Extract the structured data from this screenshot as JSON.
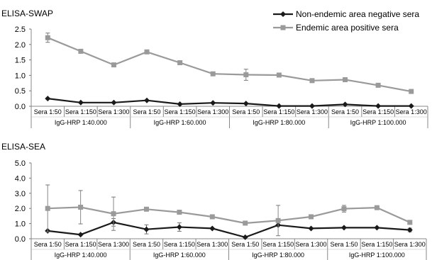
{
  "chart_data": [
    {
      "type": "line",
      "title": "ELISA-SWAP",
      "xlabel": "",
      "ylabel": "",
      "ylim": [
        0,
        2.5
      ],
      "yticks": [
        "0.0",
        "0.5",
        "1.0",
        "1.5",
        "2.0",
        "2.5"
      ],
      "legend_position": "top-right",
      "x_categories": [
        "Sera 1:50",
        "Sera 1:150",
        "Sera 1:300",
        "Sera 1:50",
        "Sera 1:150",
        "Sera 1:300",
        "Sera 1:50",
        "Sera 1:150",
        "Sera 1:300",
        "Sera 1:50",
        "Sera 1:150",
        "Sera 1:300"
      ],
      "x_groups": [
        "IgG-HRP 1:40.000",
        "IgG-HRP 1:60.000",
        "IgG-HRP 1:80.000",
        "IgG-HRP 1:100.000"
      ],
      "series": [
        {
          "name": "Non-endemic area negative sera",
          "marker": "diamond",
          "color": "#1a1a1a",
          "values": [
            0.25,
            0.12,
            0.12,
            0.19,
            0.07,
            0.11,
            0.09,
            0.01,
            0.01,
            0.06,
            0.01,
            0.01
          ]
        },
        {
          "name": "Endemic area positive sera",
          "marker": "square",
          "color": "#9a9a9a",
          "values": [
            2.22,
            1.78,
            1.34,
            1.76,
            1.41,
            1.05,
            1.02,
            1.01,
            0.83,
            0.86,
            0.68,
            0.48
          ],
          "error": [
            0.15,
            0,
            0,
            0,
            0,
            0,
            0.18,
            0,
            0,
            0,
            0,
            0
          ]
        }
      ]
    },
    {
      "type": "line",
      "title": "ELISA-SEA",
      "xlabel": "",
      "ylabel": "",
      "ylim": [
        0,
        5
      ],
      "yticks": [
        "0.0",
        "1.0",
        "2.0",
        "3.0",
        "4.0",
        "5.0"
      ],
      "x_categories": [
        "Sera 1:50",
        "Sera 1:150",
        "Sera 1:300",
        "Sera 1:50",
        "Sera 1:150",
        "Sera 1:300",
        "Sera 1:50",
        "Sera 1:150",
        "Sera 1:300",
        "Sera 1:50",
        "Sera 1:150",
        "Sera 1:300"
      ],
      "x_groups": [
        "IgG-HRP 1:40.000",
        "IgG-HRP 1:60.000",
        "IgG-HRP 1:80.000",
        "IgG-HRP 1:100.000"
      ],
      "series": [
        {
          "name": "Non-endemic area negative sera",
          "marker": "diamond",
          "color": "#1a1a1a",
          "values": [
            0.52,
            0.27,
            1.08,
            0.62,
            0.77,
            0.68,
            0.1,
            0.9,
            0.68,
            0.73,
            0.73,
            0.58
          ],
          "error": [
            0,
            0,
            0.25,
            0.3,
            0.28,
            0,
            0,
            0,
            0,
            0,
            0,
            0.12
          ]
        },
        {
          "name": "Endemic area positive sera",
          "marker": "square",
          "color": "#9a9a9a",
          "values": [
            2.0,
            2.08,
            1.65,
            1.95,
            1.75,
            1.45,
            1.03,
            1.2,
            1.45,
            1.98,
            2.05,
            1.08
          ],
          "error": [
            1.55,
            1.1,
            1.1,
            0,
            0,
            0,
            0,
            1.0,
            0,
            0.22,
            0,
            0
          ]
        }
      ]
    }
  ]
}
